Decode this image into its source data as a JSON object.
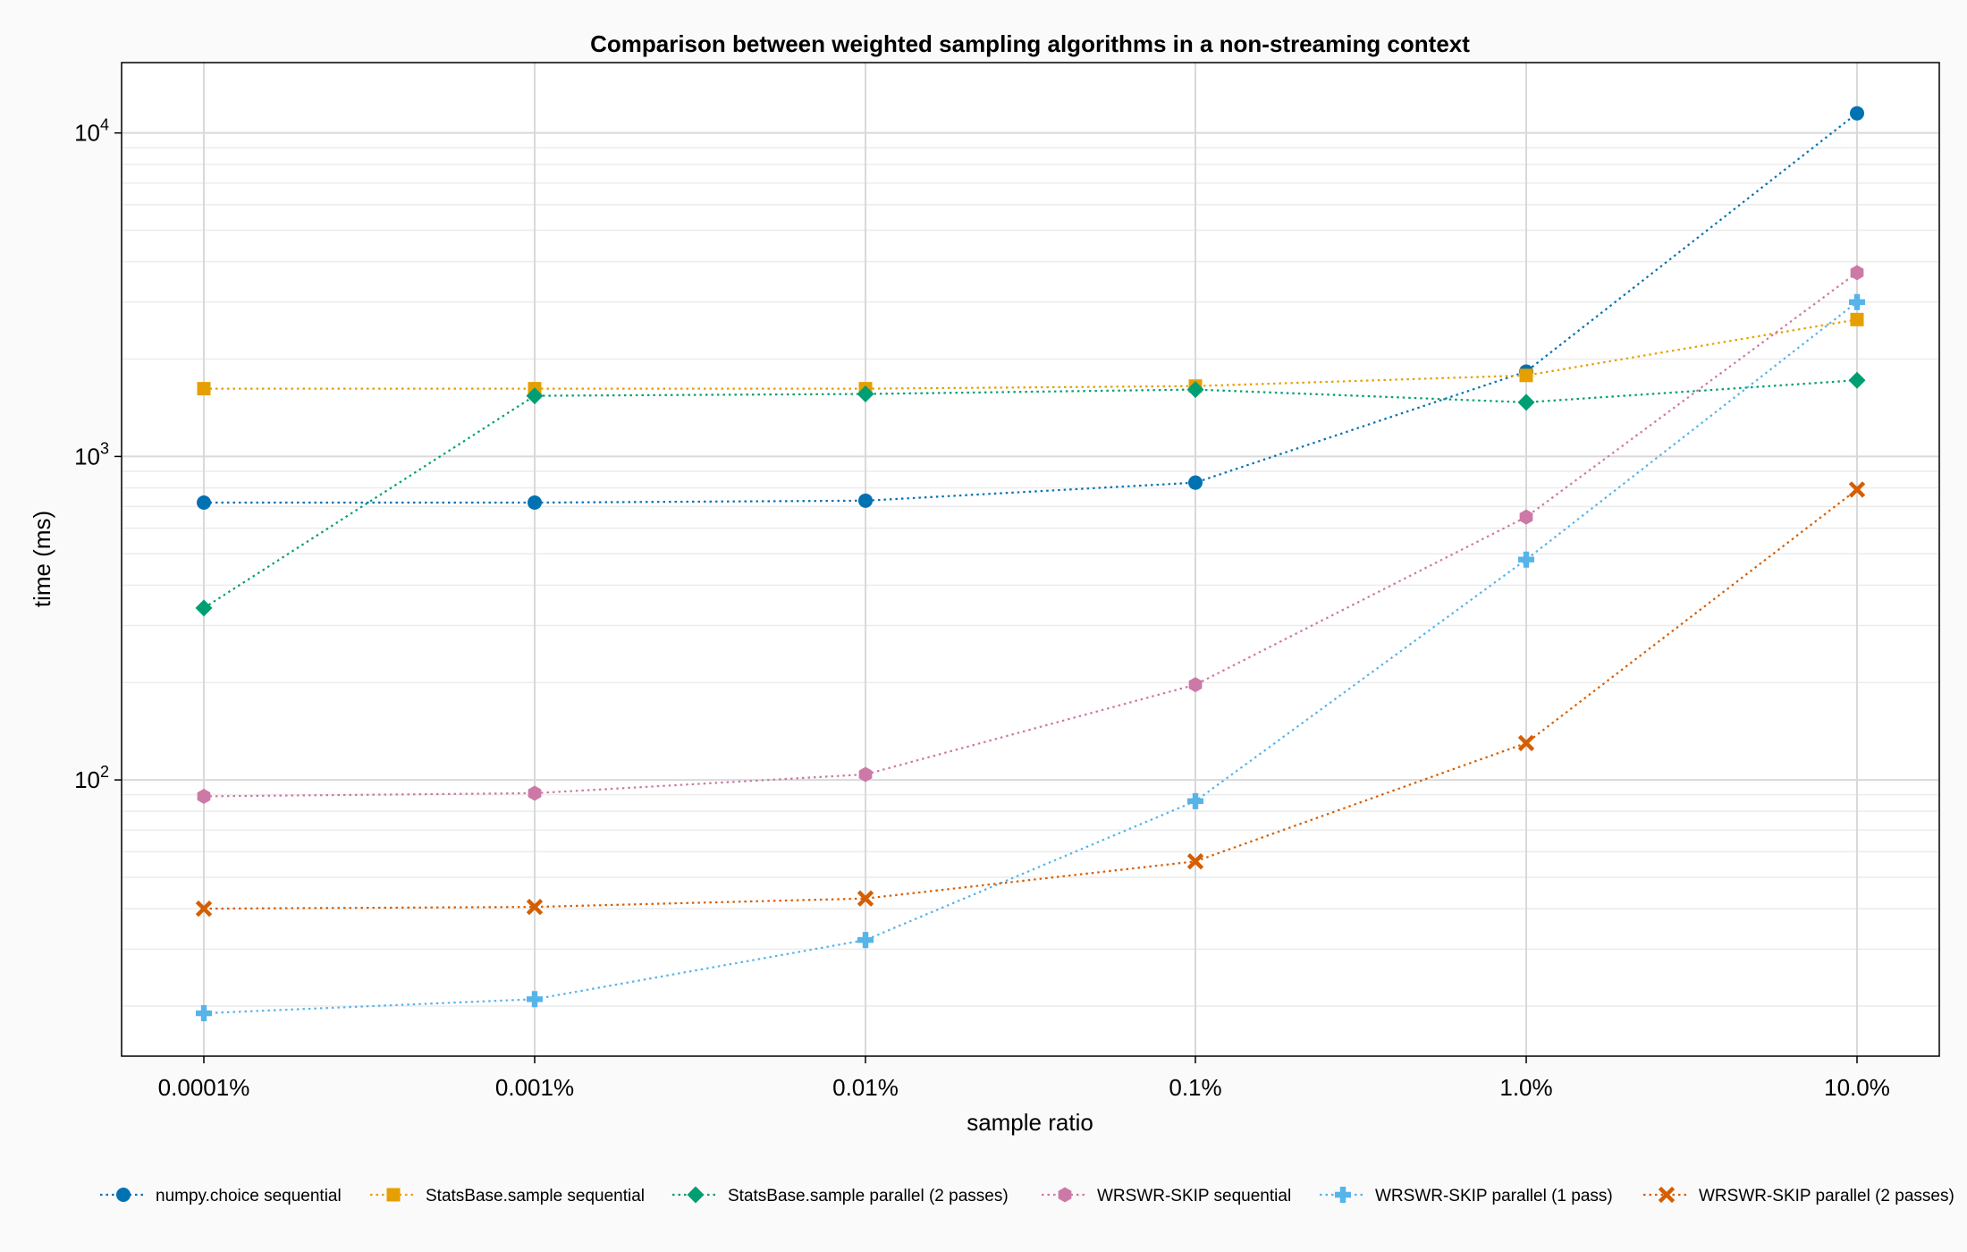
{
  "chart_data": {
    "type": "line",
    "title": "Comparison between weighted sampling algorithms in a non-streaming context",
    "xlabel": "sample ratio",
    "ylabel": "time (ms)",
    "categories": [
      "0.0001%",
      "0.001%",
      "0.01%",
      "0.1%",
      "1.0%",
      "10.0%"
    ],
    "yscale": "log",
    "ylim": [
      14,
      16500
    ],
    "grid": true,
    "legend_position": "bottom",
    "series": [
      {
        "name": "numpy.choice sequential",
        "color": "#0072b2",
        "marker": "circle",
        "values": [
          720,
          720,
          730,
          830,
          1830,
          11500
        ]
      },
      {
        "name": "StatsBase.sample sequential",
        "color": "#e69f00",
        "marker": "square",
        "values": [
          1620,
          1620,
          1620,
          1650,
          1780,
          2650
        ]
      },
      {
        "name": "StatsBase.sample parallel (2 passes)",
        "color": "#009e73",
        "marker": "diamond",
        "values": [
          340,
          1540,
          1560,
          1610,
          1470,
          1720
        ]
      },
      {
        "name": "WRSWR-SKIP sequential",
        "color": "#cc79a7",
        "marker": "hexagon",
        "values": [
          89,
          91,
          104,
          197,
          650,
          3700
        ]
      },
      {
        "name": "WRSWR-SKIP parallel (1 pass)",
        "color": "#56b4e9",
        "marker": "cross",
        "values": [
          19,
          21,
          32,
          86,
          480,
          3000
        ]
      },
      {
        "name": "WRSWR-SKIP parallel (2 passes)",
        "color": "#d55e00",
        "marker": "xcross",
        "values": [
          40,
          40.5,
          43,
          56,
          130,
          790
        ]
      }
    ]
  }
}
